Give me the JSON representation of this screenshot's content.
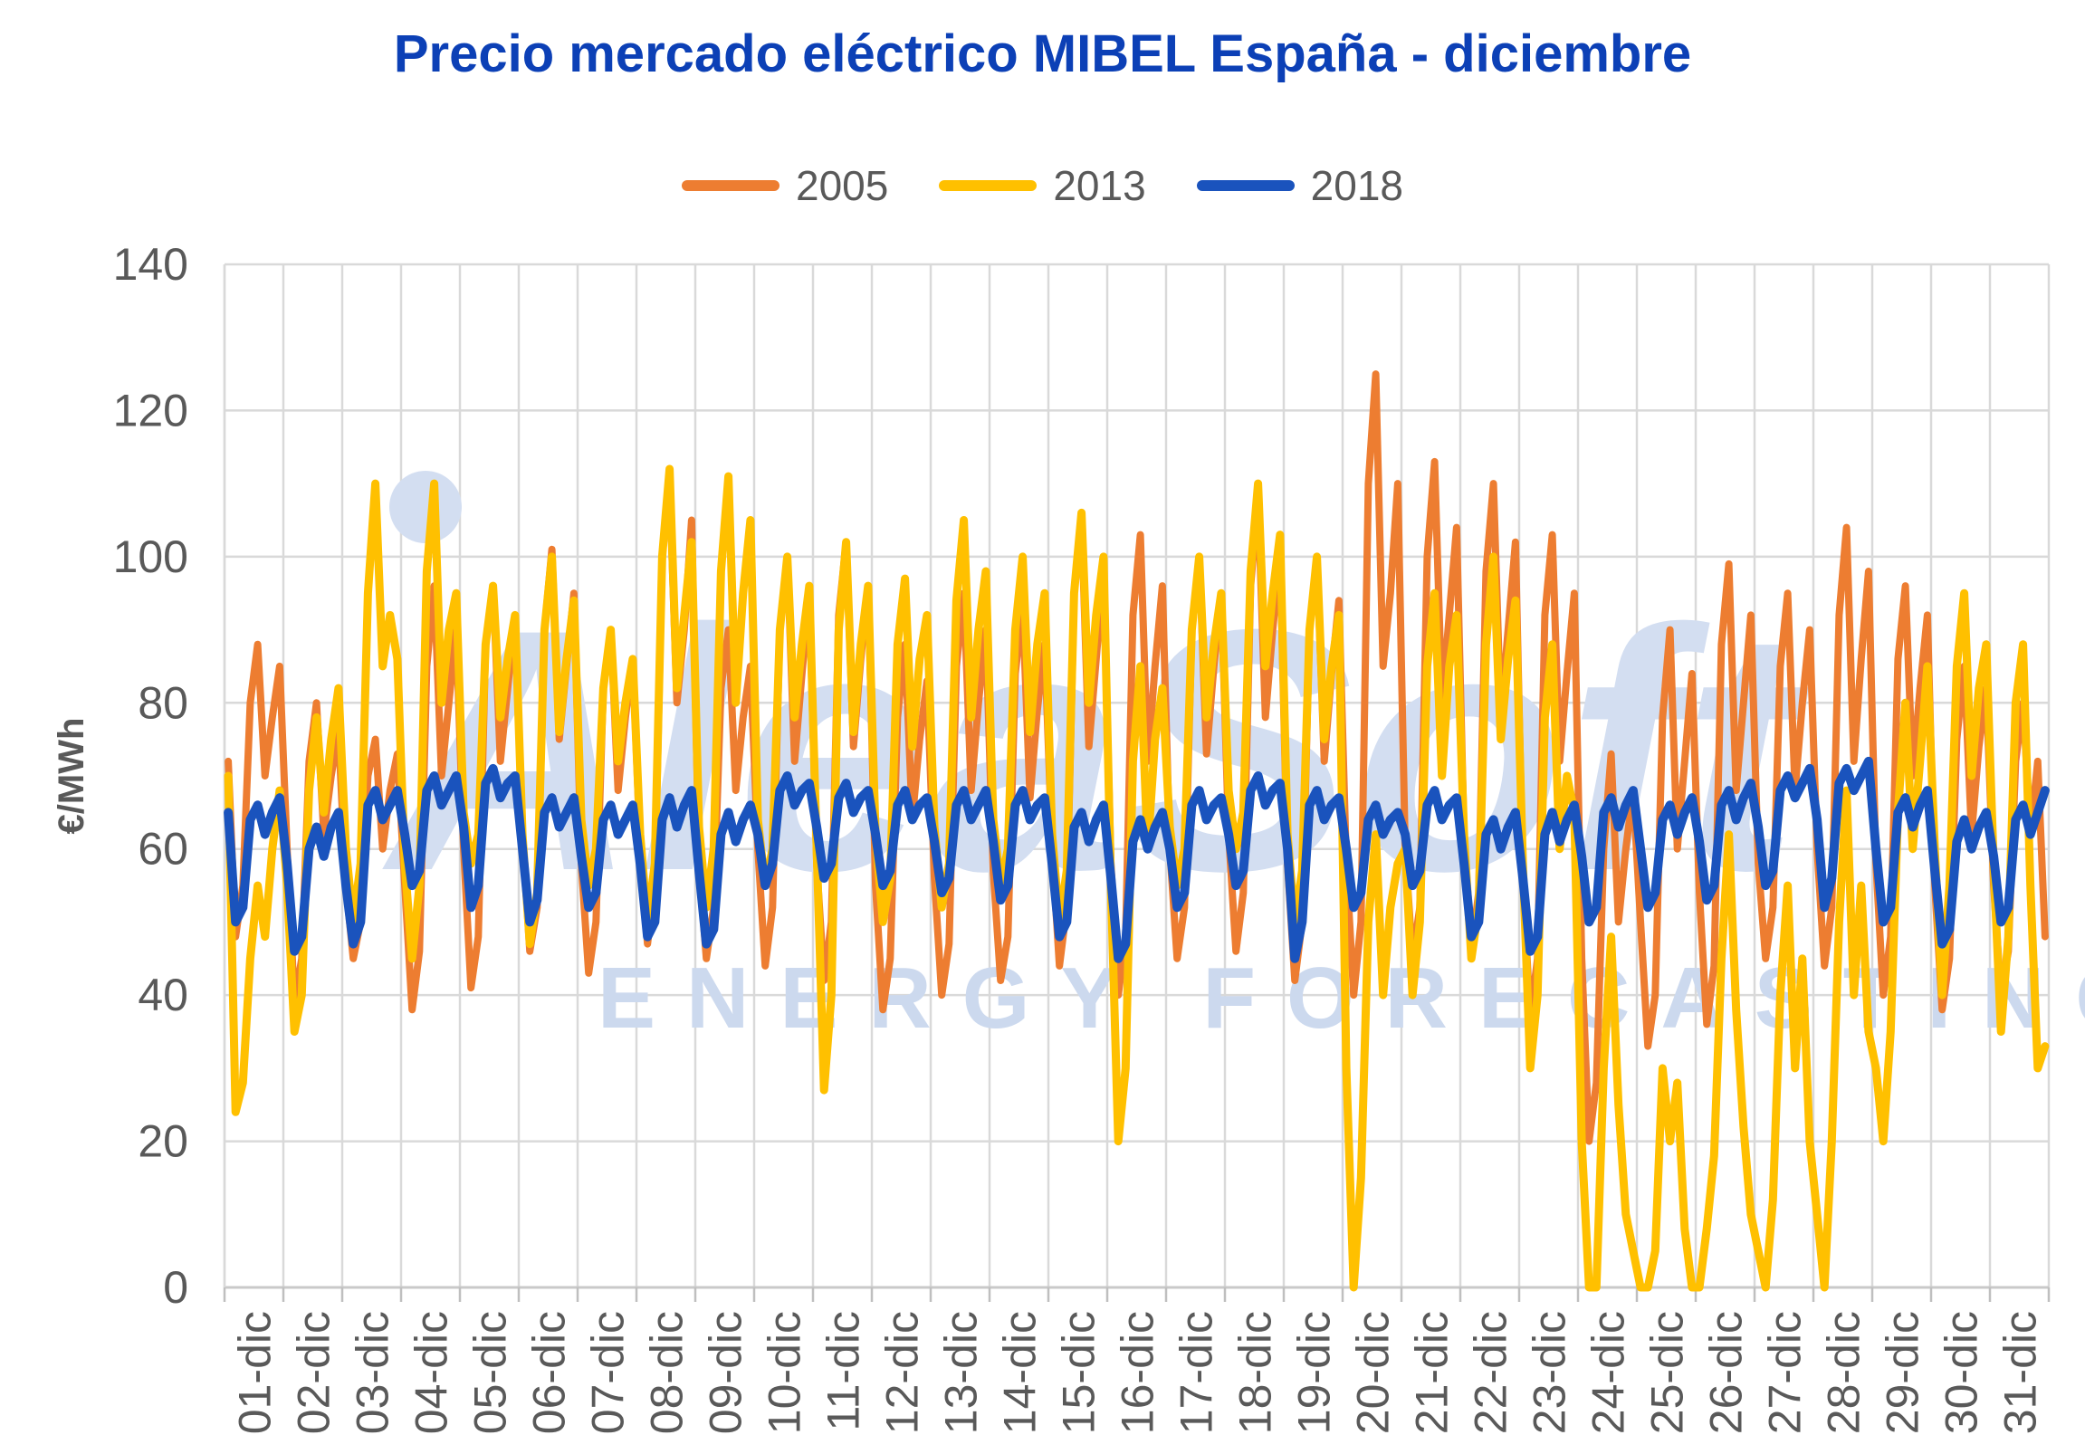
{
  "title": "Precio mercado eléctrico MIBEL España - diciembre",
  "watermark": {
    "brand": "AleaSoft",
    "tagline": "ENERGY FORECASTING",
    "color": "#d3def1",
    "tagline_color": "#ccd9ee"
  },
  "colors": {
    "title": "#0c40b6",
    "legend_text": "#595959",
    "axis_text": "#595959",
    "gridline": "#d9d9d9",
    "axis_line": "#c9c9c9",
    "tick": "#bfbfbf"
  },
  "chart_data": {
    "type": "line",
    "title": "Precio mercado eléctrico MIBEL España - diciembre",
    "ylabel": "€/MWh",
    "ylim": [
      0,
      140
    ],
    "yticks": [
      0,
      20,
      40,
      60,
      80,
      100,
      120,
      140
    ],
    "grid": "horizontal and vertical, light gray",
    "legend_position": "top center",
    "x_mode": "hourly prices across December, 8 samples per day",
    "categories": [
      "01-dic",
      "02-dic",
      "03-dic",
      "04-dic",
      "05-dic",
      "06-dic",
      "07-dic",
      "08-dic",
      "09-dic",
      "10-dic",
      "11-dic",
      "12-dic",
      "13-dic",
      "14-dic",
      "15-dic",
      "16-dic",
      "17-dic",
      "18-dic",
      "19-dic",
      "20-dic",
      "21-dic",
      "22-dic",
      "23-dic",
      "24-dic",
      "25-dic",
      "26-dic",
      "27-dic",
      "28-dic",
      "29-dic",
      "30-dic",
      "31-dic"
    ],
    "series": [
      {
        "name": "2005",
        "color": "#ed7d31",
        "stroke_width": 8,
        "values_by_day": [
          [
            72,
            48,
            55,
            80,
            88,
            70,
            78,
            85
          ],
          [
            60,
            39,
            45,
            72,
            80,
            62,
            70,
            76
          ],
          [
            55,
            45,
            50,
            70,
            75,
            60,
            68,
            73
          ],
          [
            55,
            38,
            46,
            85,
            96,
            70,
            80,
            90
          ],
          [
            60,
            41,
            48,
            88,
            96,
            72,
            82,
            92
          ],
          [
            62,
            46,
            52,
            90,
            101,
            75,
            85,
            95
          ],
          [
            58,
            43,
            50,
            82,
            90,
            68,
            78,
            86
          ],
          [
            60,
            47,
            55,
            100,
            110,
            80,
            90,
            105
          ],
          [
            58,
            45,
            52,
            82,
            90,
            68,
            78,
            85
          ],
          [
            60,
            44,
            52,
            90,
            100,
            72,
            84,
            95
          ],
          [
            58,
            42,
            50,
            92,
            102,
            74,
            86,
            96
          ],
          [
            55,
            38,
            45,
            78,
            88,
            64,
            75,
            83
          ],
          [
            56,
            40,
            47,
            85,
            95,
            68,
            80,
            90
          ],
          [
            57,
            42,
            48,
            84,
            93,
            67,
            79,
            88
          ],
          [
            60,
            44,
            52,
            95,
            105,
            74,
            86,
            98
          ],
          [
            58,
            40,
            48,
            92,
            103,
            72,
            85,
            96
          ],
          [
            60,
            45,
            52,
            90,
            100,
            73,
            85,
            95
          ],
          [
            62,
            46,
            54,
            96,
            108,
            78,
            90,
            100
          ],
          [
            58,
            42,
            50,
            90,
            100,
            72,
            84,
            94
          ],
          [
            58,
            40,
            50,
            110,
            125,
            85,
            95,
            110
          ],
          [
            60,
            45,
            52,
            100,
            113,
            80,
            92,
            104
          ],
          [
            62,
            46,
            54,
            98,
            110,
            78,
            90,
            102
          ],
          [
            56,
            37,
            45,
            92,
            103,
            72,
            84,
            95
          ],
          [
            45,
            20,
            28,
            60,
            73,
            50,
            60,
            68
          ],
          [
            50,
            33,
            40,
            78,
            90,
            60,
            72,
            84
          ],
          [
            54,
            36,
            44,
            88,
            99,
            68,
            80,
            92
          ],
          [
            58,
            45,
            52,
            85,
            95,
            68,
            80,
            90
          ],
          [
            60,
            44,
            52,
            92,
            104,
            72,
            86,
            98
          ],
          [
            58,
            40,
            48,
            86,
            96,
            70,
            82,
            92
          ],
          [
            55,
            38,
            45,
            75,
            85,
            62,
            74,
            82
          ],
          [
            55,
            40,
            46,
            72,
            80,
            62,
            72,
            48
          ]
        ]
      },
      {
        "name": "2013",
        "color": "#ffc000",
        "stroke_width": 9,
        "values_by_day": [
          [
            70,
            24,
            28,
            45,
            55,
            48,
            60,
            68
          ],
          [
            55,
            35,
            40,
            68,
            78,
            65,
            75,
            82
          ],
          [
            60,
            50,
            58,
            95,
            110,
            85,
            92,
            86
          ],
          [
            58,
            45,
            55,
            98,
            110,
            80,
            90,
            95
          ],
          [
            65,
            58,
            62,
            88,
            96,
            78,
            86,
            92
          ],
          [
            62,
            47,
            54,
            90,
            100,
            76,
            86,
            94
          ],
          [
            64,
            55,
            60,
            82,
            90,
            72,
            80,
            86
          ],
          [
            62,
            50,
            58,
            100,
            112,
            82,
            92,
            102
          ],
          [
            63,
            52,
            60,
            98,
            111,
            80,
            95,
            105
          ],
          [
            64,
            55,
            60,
            90,
            100,
            78,
            88,
            96
          ],
          [
            60,
            27,
            40,
            90,
            102,
            76,
            88,
            96
          ],
          [
            62,
            50,
            56,
            88,
            97,
            74,
            86,
            92
          ],
          [
            63,
            52,
            58,
            94,
            105,
            78,
            90,
            98
          ],
          [
            64,
            55,
            60,
            90,
            100,
            76,
            88,
            95
          ],
          [
            62,
            50,
            57,
            95,
            106,
            80,
            92,
            100
          ],
          [
            55,
            20,
            30,
            72,
            85,
            60,
            75,
            82
          ],
          [
            63,
            55,
            60,
            90,
            100,
            78,
            88,
            95
          ],
          [
            68,
            60,
            65,
            98,
            110,
            85,
            95,
            103
          ],
          [
            62,
            50,
            57,
            90,
            100,
            75,
            85,
            92
          ],
          [
            30,
            0,
            15,
            50,
            62,
            40,
            52,
            58
          ],
          [
            60,
            40,
            50,
            85,
            95,
            70,
            85,
            92
          ],
          [
            62,
            45,
            52,
            88,
            100,
            75,
            86,
            94
          ],
          [
            58,
            30,
            40,
            78,
            88,
            60,
            70,
            65
          ],
          [
            20,
            0,
            0,
            30,
            48,
            25,
            10,
            5
          ],
          [
            0,
            0,
            5,
            30,
            20,
            28,
            8,
            0
          ],
          [
            0,
            8,
            18,
            45,
            62,
            38,
            22,
            10
          ],
          [
            5,
            0,
            12,
            40,
            55,
            30,
            45,
            20
          ],
          [
            10,
            0,
            20,
            50,
            68,
            40,
            55,
            35
          ],
          [
            30,
            20,
            35,
            65,
            80,
            60,
            72,
            85
          ],
          [
            60,
            40,
            55,
            85,
            95,
            70,
            82,
            88
          ],
          [
            58,
            35,
            48,
            80,
            88,
            55,
            30,
            33
          ]
        ]
      },
      {
        "name": "2018",
        "color": "#1a53bd",
        "stroke_width": 10,
        "values_by_day": [
          [
            65,
            50,
            52,
            64,
            66,
            62,
            65,
            67
          ],
          [
            58,
            46,
            48,
            60,
            63,
            59,
            63,
            65
          ],
          [
            55,
            47,
            50,
            66,
            68,
            64,
            66,
            68
          ],
          [
            62,
            55,
            57,
            68,
            70,
            66,
            68,
            70
          ],
          [
            63,
            52,
            55,
            69,
            71,
            67,
            69,
            70
          ],
          [
            60,
            50,
            53,
            65,
            67,
            63,
            65,
            67
          ],
          [
            59,
            52,
            54,
            64,
            66,
            62,
            64,
            66
          ],
          [
            58,
            48,
            50,
            64,
            67,
            63,
            66,
            68
          ],
          [
            57,
            47,
            49,
            62,
            65,
            61,
            64,
            66
          ],
          [
            62,
            55,
            58,
            68,
            70,
            66,
            68,
            69
          ],
          [
            63,
            56,
            58,
            67,
            69,
            65,
            67,
            68
          ],
          [
            62,
            55,
            57,
            66,
            68,
            64,
            66,
            67
          ],
          [
            61,
            54,
            56,
            66,
            68,
            64,
            66,
            68
          ],
          [
            61,
            53,
            55,
            66,
            68,
            64,
            66,
            67
          ],
          [
            58,
            48,
            50,
            63,
            65,
            61,
            64,
            66
          ],
          [
            56,
            45,
            47,
            61,
            64,
            60,
            63,
            65
          ],
          [
            60,
            52,
            54,
            66,
            68,
            64,
            66,
            67
          ],
          [
            62,
            55,
            57,
            68,
            70,
            66,
            68,
            69
          ],
          [
            60,
            45,
            50,
            66,
            68,
            64,
            66,
            67
          ],
          [
            60,
            52,
            54,
            64,
            66,
            62,
            64,
            65
          ],
          [
            62,
            55,
            57,
            66,
            68,
            64,
            66,
            67
          ],
          [
            58,
            48,
            50,
            62,
            64,
            60,
            63,
            65
          ],
          [
            56,
            46,
            48,
            62,
            65,
            61,
            64,
            66
          ],
          [
            59,
            50,
            52,
            65,
            67,
            63,
            66,
            68
          ],
          [
            60,
            52,
            54,
            64,
            66,
            62,
            65,
            67
          ],
          [
            61,
            53,
            55,
            66,
            68,
            64,
            67,
            69
          ],
          [
            63,
            55,
            57,
            68,
            70,
            67,
            69,
            71
          ],
          [
            64,
            52,
            56,
            69,
            71,
            68,
            70,
            72
          ],
          [
            60,
            50,
            52,
            65,
            67,
            63,
            66,
            68
          ],
          [
            57,
            47,
            49,
            61,
            64,
            60,
            63,
            65
          ],
          [
            59,
            50,
            52,
            64,
            66,
            62,
            65,
            68
          ]
        ]
      }
    ]
  },
  "legend": {
    "items": [
      {
        "label": "2005",
        "color": "#ed7d31"
      },
      {
        "label": "2013",
        "color": "#ffc000"
      },
      {
        "label": "2018",
        "color": "#1a53bd"
      }
    ]
  }
}
